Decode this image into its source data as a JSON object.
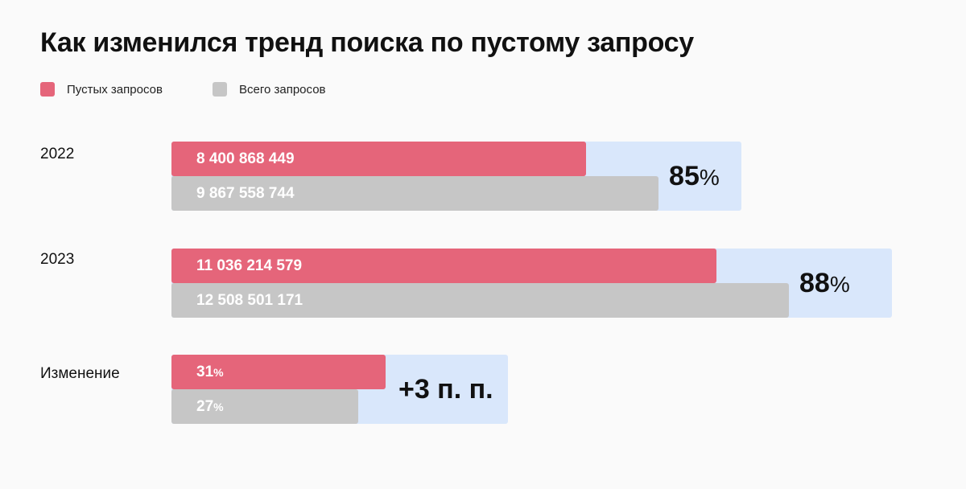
{
  "title": "Как изменился тренд поиска по пустому запросу",
  "colors": {
    "empty": "#e5657a",
    "total": "#c6c6c6",
    "panel": "#d9e7fb"
  },
  "legend": [
    {
      "label": "Пустых запросов",
      "color": "#e5657a"
    },
    {
      "label": "Всего запросов",
      "color": "#c6c6c6"
    }
  ],
  "chart_data": {
    "type": "bar",
    "orientation": "horizontal",
    "title": "Как изменился тренд поиска по пустому запросу",
    "series_names": [
      "Пустых запросов",
      "Всего запросов"
    ],
    "rows": [
      {
        "label": "2022",
        "empty_value": 8400868449,
        "empty_text": "8 400 868 449",
        "total_value": 9867558744,
        "total_text": "9 867 558 744",
        "ratio_value": "85",
        "ratio_unit": "%"
      },
      {
        "label": "2023",
        "empty_value": 11036214579,
        "empty_text": "11 036 214 579",
        "total_value": 12508501171,
        "total_text": "12 508 501 171",
        "ratio_value": "88",
        "ratio_unit": "%"
      },
      {
        "label": "Изменение",
        "empty_value": 31,
        "empty_text": "31",
        "empty_unit": "%",
        "total_value": 27,
        "total_text": "27",
        "total_unit": "%",
        "ratio_value": "+3 п. п.",
        "ratio_unit": ""
      }
    ]
  }
}
